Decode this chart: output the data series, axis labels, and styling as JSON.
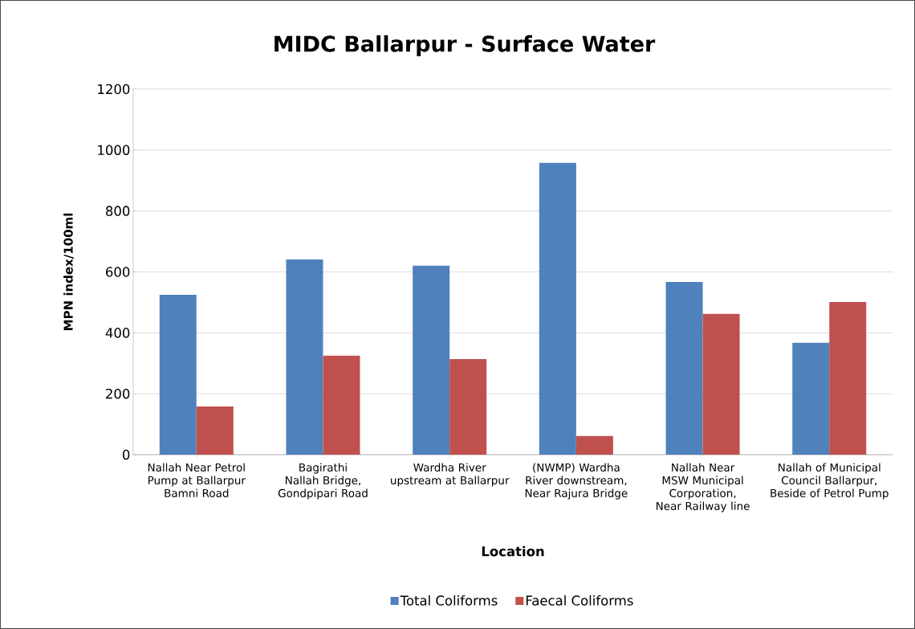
{
  "chart_data": {
    "type": "bar",
    "title": "MIDC Ballarpur - Surface Water",
    "xlabel": "Location",
    "ylabel": "MPN index/100ml",
    "categories": [
      "Nallah Near Petrol Pump at Ballarpur Bamni Road",
      "Bagirathi Nallah Bridge, Gondpipari Road",
      "Wardha River upstream at Ballarpur",
      "(NWMP) Wardha River downstream, Near Rajura Bridge",
      "Nallah Near MSW Municipal Corporation, Near Railway line",
      "Nallah of Municipal Council Ballarpur, Beside of Petrol Pump"
    ],
    "series": [
      {
        "name": "Total Coliforms",
        "color": "#4f81bd",
        "values": [
          525,
          641,
          620,
          958,
          567,
          367
        ]
      },
      {
        "name": "Faecal Coliforms",
        "color": "#c0504d",
        "values": [
          158,
          325,
          314,
          61,
          462,
          501
        ]
      }
    ],
    "ylim": [
      0,
      1200
    ],
    "yticks": [
      0,
      200,
      400,
      600,
      800,
      1000,
      1200
    ],
    "grid": "y",
    "legend": "bottom"
  }
}
